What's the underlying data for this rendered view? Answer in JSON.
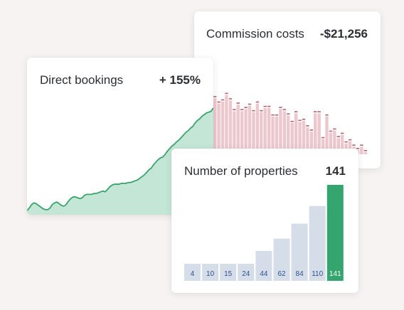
{
  "commission": {
    "title": "Commission costs",
    "value": "-$21,256"
  },
  "bookings": {
    "title": "Direct bookings",
    "value": "+ 155%"
  },
  "properties": {
    "title": "Number of properties",
    "value": "141"
  },
  "colors": {
    "background": "#f6f3f2",
    "commission_bar": "#ecc8ce",
    "commission_tick": "#b2636c",
    "bookings_line": "#3aa46b",
    "bookings_fill": "#c3e6d6",
    "property_bar": "#d5dde8",
    "property_bar_highlight": "#35a56f",
    "property_label": "#2f4f8f"
  },
  "chart_data": [
    {
      "type": "bar",
      "name": "commission-costs",
      "values": [
        52,
        47,
        49,
        55,
        50,
        40,
        46,
        40,
        42,
        45,
        39,
        47,
        39,
        43,
        43,
        35,
        35,
        42,
        40,
        36,
        29,
        38,
        30,
        31,
        25,
        21,
        38,
        38,
        14,
        35,
        20,
        22,
        15,
        18,
        10,
        12,
        7,
        4,
        7,
        2
      ],
      "ylim": [
        0,
        60
      ]
    },
    {
      "type": "area",
      "name": "direct-bookings",
      "values": [
        5,
        8,
        12,
        14,
        13,
        11,
        9,
        7,
        6,
        6,
        8,
        12,
        14,
        15,
        13,
        11,
        10,
        12,
        16,
        19,
        21,
        21,
        20,
        19,
        20,
        23,
        24,
        24,
        24,
        25,
        25,
        26,
        27,
        28,
        27,
        30,
        33,
        35,
        36,
        36,
        36,
        37,
        37,
        37,
        38,
        38,
        39,
        40,
        41,
        43,
        45,
        47,
        50,
        53,
        55,
        59,
        62,
        65,
        67,
        68,
        71,
        75,
        78,
        81,
        83,
        86,
        88,
        91,
        94,
        97,
        99,
        102,
        104,
        108,
        111,
        113,
        116,
        118,
        120,
        121,
        122,
        126
      ],
      "ylim": [
        0,
        135
      ]
    },
    {
      "type": "bar",
      "name": "number-of-properties",
      "categories": [
        "4",
        "10",
        "15",
        "24",
        "44",
        "62",
        "84",
        "110",
        "141"
      ],
      "values": [
        4,
        10,
        15,
        24,
        44,
        62,
        84,
        110,
        141
      ],
      "highlight_index": 8,
      "ylim": [
        0,
        141
      ]
    }
  ]
}
